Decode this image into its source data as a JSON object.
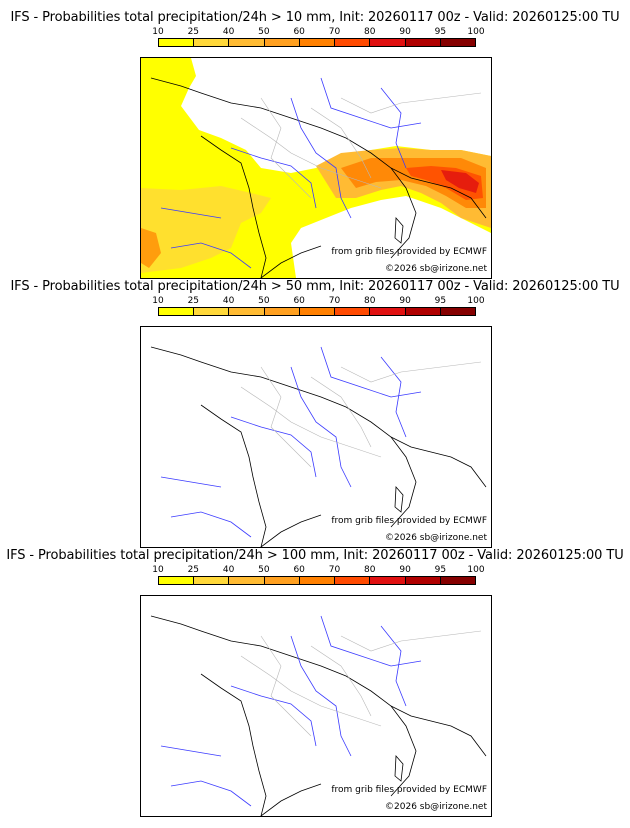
{
  "panels": [
    {
      "title": "IFS - Probabilities total precipitation/24h > 10 mm, Init: 20260117 00z - Valid: 20260125:00 TU",
      "has_field": true
    },
    {
      "title": "IFS - Probabilities total precipitation/24h > 50 mm, Init: 20260117 00z - Valid: 20260125:00 TU",
      "has_field": false
    },
    {
      "title": "IFS - Probabilities total precipitation/24h > 100 mm, Init: 20260117 00z - Valid: 20260125:00 TU",
      "has_field": false
    }
  ],
  "scale": {
    "labels": [
      "10",
      "25",
      "40",
      "50",
      "60",
      "70",
      "80",
      "90",
      "95",
      "100"
    ],
    "colors": [
      "#ffff00",
      "#ffd83a",
      "#ffbb33",
      "#ffa020",
      "#ff8000",
      "#ff4a00",
      "#e01010",
      "#b00000",
      "#850000",
      "#4f0000"
    ]
  },
  "credits": {
    "source": "from grib files provided by ECMWF",
    "copyright": "©2026 sb@irizone.net"
  },
  "colors": {
    "rivers": "#3b3bff",
    "borders_internal": "#b8b8b8",
    "coast": "#000000"
  }
}
